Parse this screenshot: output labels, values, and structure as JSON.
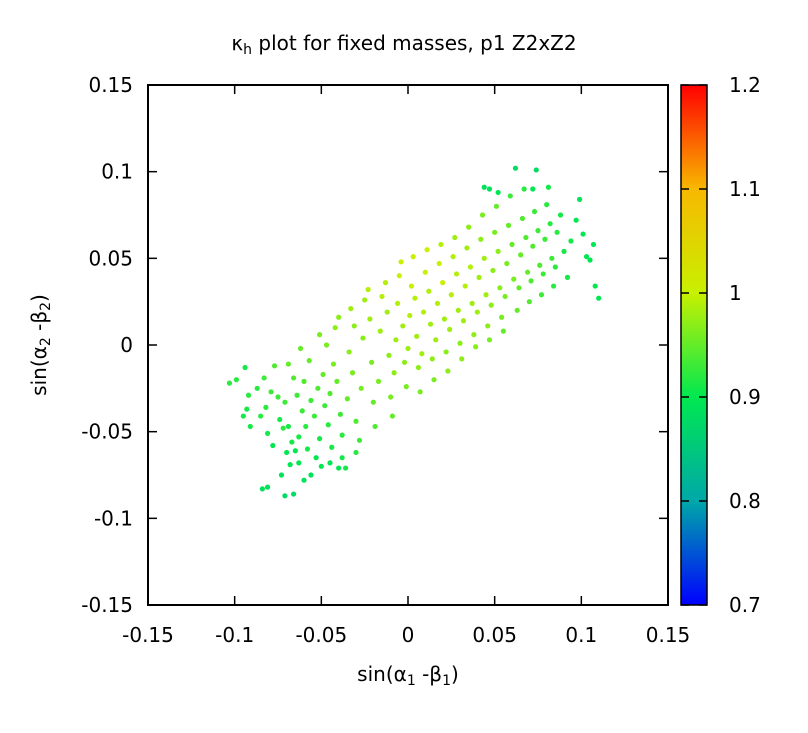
{
  "chart_data": {
    "type": "scatter",
    "title": {
      "main": "κ",
      "sub": "h",
      "rest": " plot for fixed masses, p1 Z2xZ2"
    },
    "xlabel": {
      "pre": "sin(α",
      "sub1": "1",
      "mid": " -β",
      "sub2": "1",
      "post": ")"
    },
    "ylabel": {
      "pre": "sin(α",
      "sub1": "2",
      "mid": " -β",
      "sub2": "2",
      "post": ")"
    },
    "xlim": [
      -0.15,
      0.15
    ],
    "ylim": [
      -0.15,
      0.15
    ],
    "xticks": [
      -0.15,
      -0.1,
      -0.05,
      0,
      0.05,
      0.1,
      0.15
    ],
    "xticklabels": [
      "-0.15",
      "-0.1",
      "-0.05",
      "0",
      "0.05",
      "0.1",
      "0.15"
    ],
    "yticks": [
      -0.15,
      -0.1,
      -0.05,
      0,
      0.05,
      0.1,
      0.15
    ],
    "yticklabels": [
      "-0.15",
      "-0.1",
      "-0.05",
      "0",
      "0.05",
      "0.1",
      "0.15"
    ],
    "colorbar": {
      "range": [
        0.7,
        1.2
      ],
      "ticks": [
        0.7,
        0.8,
        0.9,
        1,
        1.1,
        1.2
      ],
      "ticklabels": [
        "0.7",
        "0.8",
        "0.9",
        "1",
        "1.1",
        "1.2"
      ]
    },
    "grid": false,
    "points": [
      [
        -0.103,
        -0.022,
        0.92
      ],
      [
        -0.099,
        -0.02,
        0.92
      ],
      [
        -0.094,
        -0.013,
        0.91
      ],
      [
        -0.095,
        -0.041,
        0.91
      ],
      [
        -0.092,
        -0.029,
        0.92
      ],
      [
        -0.093,
        -0.037,
        0.91
      ],
      [
        -0.091,
        -0.047,
        0.91
      ],
      [
        -0.087,
        -0.025,
        0.92
      ],
      [
        -0.082,
        -0.036,
        0.92
      ],
      [
        -0.083,
        -0.019,
        0.93
      ],
      [
        -0.085,
        -0.041,
        0.92
      ],
      [
        -0.081,
        -0.051,
        0.91
      ],
      [
        -0.084,
        -0.083,
        0.89
      ],
      [
        -0.081,
        -0.082,
        0.89
      ],
      [
        -0.071,
        -0.087,
        0.88
      ],
      [
        -0.066,
        -0.086,
        0.88
      ],
      [
        -0.078,
        -0.058,
        0.9
      ],
      [
        -0.074,
        -0.043,
        0.91
      ],
      [
        -0.075,
        -0.03,
        0.93
      ],
      [
        -0.072,
        -0.048,
        0.92
      ],
      [
        -0.077,
        -0.012,
        0.94
      ],
      [
        -0.079,
        -0.027,
        0.93
      ],
      [
        -0.073,
        -0.075,
        0.89
      ],
      [
        -0.068,
        -0.069,
        0.9
      ],
      [
        -0.071,
        -0.033,
        0.93
      ],
      [
        -0.069,
        -0.047,
        0.91
      ],
      [
        -0.065,
        -0.061,
        0.9
      ],
      [
        -0.063,
        -0.068,
        0.9
      ],
      [
        -0.066,
        -0.019,
        0.94
      ],
      [
        -0.069,
        -0.011,
        0.95
      ],
      [
        -0.064,
        -0.029,
        0.93
      ],
      [
        -0.061,
        -0.038,
        0.93
      ],
      [
        -0.063,
        -0.053,
        0.91
      ],
      [
        -0.058,
        -0.06,
        0.91
      ],
      [
        -0.059,
        -0.047,
        0.92
      ],
      [
        -0.06,
        -0.021,
        0.94
      ],
      [
        -0.062,
        -0.002,
        0.95
      ],
      [
        -0.057,
        -0.009,
        0.95
      ],
      [
        -0.056,
        -0.032,
        0.93
      ],
      [
        -0.054,
        -0.041,
        0.93
      ],
      [
        -0.053,
        -0.065,
        0.9
      ],
      [
        -0.05,
        -0.07,
        0.9
      ],
      [
        -0.051,
        -0.054,
        0.91
      ],
      [
        -0.049,
        -0.017,
        0.95
      ],
      [
        -0.052,
        -0.025,
        0.94
      ],
      [
        -0.051,
        0.006,
        0.96
      ],
      [
        -0.047,
        0.0,
        0.96
      ],
      [
        -0.048,
        -0.035,
        0.93
      ],
      [
        -0.046,
        -0.046,
        0.92
      ],
      [
        -0.044,
        -0.059,
        0.91
      ],
      [
        -0.045,
        -0.028,
        0.94
      ],
      [
        -0.043,
        -0.011,
        0.96
      ],
      [
        -0.042,
        0.01,
        0.97
      ],
      [
        -0.04,
        0.016,
        0.97
      ],
      [
        -0.041,
        -0.021,
        0.95
      ],
      [
        -0.039,
        -0.04,
        0.93
      ],
      [
        -0.038,
        -0.052,
        0.92
      ],
      [
        -0.036,
        -0.071,
        0.91
      ],
      [
        -0.035,
        -0.031,
        0.95
      ],
      [
        -0.034,
        -0.004,
        0.97
      ],
      [
        -0.033,
        0.021,
        0.98
      ],
      [
        -0.031,
        0.011,
        0.97
      ],
      [
        -0.032,
        -0.016,
        0.96
      ],
      [
        -0.03,
        -0.044,
        0.94
      ],
      [
        -0.028,
        -0.055,
        0.93
      ],
      [
        -0.027,
        -0.025,
        0.96
      ],
      [
        -0.026,
        0.004,
        0.97
      ],
      [
        -0.025,
        0.026,
        0.98
      ],
      [
        -0.023,
        0.032,
        0.99
      ],
      [
        -0.022,
        0.015,
        0.98
      ],
      [
        -0.021,
        -0.01,
        0.96
      ],
      [
        -0.02,
        -0.033,
        0.95
      ],
      [
        -0.019,
        -0.047,
        0.94
      ],
      [
        -0.017,
        -0.021,
        0.96
      ],
      [
        -0.016,
        0.008,
        0.98
      ],
      [
        -0.015,
        0.028,
        0.99
      ],
      [
        -0.013,
        0.036,
        0.99
      ],
      [
        -0.012,
        0.019,
        0.98
      ],
      [
        -0.011,
        -0.006,
        0.97
      ],
      [
        -0.01,
        -0.03,
        0.96
      ],
      [
        -0.009,
        -0.041,
        0.95
      ],
      [
        -0.008,
        -0.016,
        0.97
      ],
      [
        -0.007,
        0.003,
        0.98
      ],
      [
        -0.006,
        0.024,
        0.99
      ],
      [
        -0.005,
        0.04,
        1.0
      ],
      [
        -0.004,
        0.048,
        1.0
      ],
      [
        -0.003,
        0.011,
        0.98
      ],
      [
        -0.002,
        -0.01,
        0.97
      ],
      [
        -0.001,
        -0.024,
        0.96
      ],
      [
        0.0,
        -0.002,
        0.98
      ],
      [
        0.001,
        0.017,
        0.99
      ],
      [
        0.002,
        0.034,
        1.0
      ],
      [
        0.003,
        0.051,
        1.0
      ],
      [
        0.004,
        0.027,
        0.99
      ],
      [
        0.005,
        0.005,
        0.98
      ],
      [
        0.006,
        -0.013,
        0.97
      ],
      [
        0.007,
        -0.027,
        0.96
      ],
      [
        0.008,
        -0.005,
        0.98
      ],
      [
        0.009,
        0.019,
        0.99
      ],
      [
        0.01,
        0.042,
        1.0
      ],
      [
        0.011,
        0.055,
        1.0
      ],
      [
        0.012,
        0.031,
        0.99
      ],
      [
        0.013,
        0.012,
        0.98
      ],
      [
        0.014,
        -0.008,
        0.97
      ],
      [
        0.015,
        -0.02,
        0.96
      ],
      [
        0.016,
        0.003,
        0.98
      ],
      [
        0.017,
        0.024,
        0.99
      ],
      [
        0.018,
        0.047,
        1.0
      ],
      [
        0.019,
        0.058,
        0.99
      ],
      [
        0.02,
        0.036,
        1.0
      ],
      [
        0.021,
        0.015,
        0.98
      ],
      [
        0.022,
        -0.004,
        0.97
      ],
      [
        0.023,
        -0.015,
        0.97
      ],
      [
        0.024,
        0.009,
        0.98
      ],
      [
        0.025,
        0.029,
        0.99
      ],
      [
        0.026,
        0.051,
        0.99
      ],
      [
        0.027,
        0.062,
        0.98
      ],
      [
        0.028,
        0.041,
        0.99
      ],
      [
        0.029,
        0.02,
        0.98
      ],
      [
        0.03,
        0.001,
        0.97
      ],
      [
        0.031,
        -0.008,
        0.97
      ],
      [
        0.032,
        0.014,
        0.98
      ],
      [
        0.033,
        0.034,
        0.99
      ],
      [
        0.034,
        0.056,
        0.98
      ],
      [
        0.035,
        0.068,
        0.97
      ],
      [
        0.036,
        0.045,
        0.99
      ],
      [
        0.037,
        0.024,
        0.98
      ],
      [
        0.038,
        0.006,
        0.97
      ],
      [
        0.039,
        -0.001,
        0.97
      ],
      [
        0.04,
        0.019,
        0.98
      ],
      [
        0.041,
        0.039,
        0.98
      ],
      [
        0.042,
        0.061,
        0.97
      ],
      [
        0.043,
        0.075,
        0.96
      ],
      [
        0.044,
        0.05,
        0.98
      ],
      [
        0.045,
        0.029,
        0.98
      ],
      [
        0.046,
        0.011,
        0.97
      ],
      [
        0.047,
        0.003,
        0.96
      ],
      [
        0.048,
        0.023,
        0.97
      ],
      [
        0.049,
        0.043,
        0.97
      ],
      [
        0.05,
        0.065,
        0.96
      ],
      [
        0.051,
        0.08,
        0.95
      ],
      [
        0.052,
        0.054,
        0.97
      ],
      [
        0.053,
        0.033,
        0.97
      ],
      [
        0.054,
        0.016,
        0.96
      ],
      [
        0.055,
        0.008,
        0.95
      ],
      [
        0.056,
        0.028,
        0.96
      ],
      [
        0.057,
        0.047,
        0.96
      ],
      [
        0.058,
        0.069,
        0.95
      ],
      [
        0.059,
        0.086,
        0.93
      ],
      [
        0.06,
        0.058,
        0.95
      ],
      [
        0.061,
        0.038,
        0.96
      ],
      [
        0.062,
        0.102,
        0.88
      ],
      [
        0.063,
        0.02,
        0.95
      ],
      [
        0.064,
        0.033,
        0.95
      ],
      [
        0.065,
        0.052,
        0.95
      ],
      [
        0.066,
        0.073,
        0.94
      ],
      [
        0.067,
        0.09,
        0.92
      ],
      [
        0.068,
        0.062,
        0.94
      ],
      [
        0.069,
        0.042,
        0.95
      ],
      [
        0.07,
        0.025,
        0.94
      ],
      [
        0.071,
        0.037,
        0.94
      ],
      [
        0.072,
        0.057,
        0.94
      ],
      [
        0.073,
        0.077,
        0.93
      ],
      [
        0.074,
        0.101,
        0.88
      ],
      [
        0.075,
        0.066,
        0.93
      ],
      [
        0.076,
        0.046,
        0.94
      ],
      [
        0.077,
        0.029,
        0.93
      ],
      [
        0.078,
        0.041,
        0.93
      ],
      [
        0.079,
        0.061,
        0.93
      ],
      [
        0.08,
        0.081,
        0.92
      ],
      [
        0.081,
        0.091,
        0.91
      ],
      [
        0.082,
        0.07,
        0.92
      ],
      [
        0.083,
        0.05,
        0.93
      ],
      [
        0.084,
        0.034,
        0.92
      ],
      [
        0.085,
        0.045,
        0.92
      ],
      [
        0.086,
        0.065,
        0.92
      ],
      [
        0.088,
        0.075,
        0.91
      ],
      [
        0.09,
        0.054,
        0.91
      ],
      [
        0.092,
        0.039,
        0.91
      ],
      [
        0.094,
        0.06,
        0.91
      ],
      [
        0.097,
        0.072,
        0.9
      ],
      [
        0.099,
        0.084,
        0.89
      ],
      [
        0.101,
        0.064,
        0.9
      ],
      [
        0.103,
        0.051,
        0.9
      ],
      [
        0.105,
        0.049,
        0.9
      ],
      [
        0.107,
        0.058,
        0.9
      ],
      [
        0.108,
        0.034,
        0.9
      ],
      [
        0.11,
        0.027,
        0.9
      ],
      [
        0.044,
        0.091,
        0.89
      ],
      [
        0.047,
        0.09,
        0.89
      ],
      [
        0.052,
        0.088,
        0.9
      ],
      [
        0.072,
        0.09,
        0.9
      ],
      [
        -0.06,
        -0.078,
        0.89
      ],
      [
        -0.056,
        -0.075,
        0.89
      ],
      [
        -0.045,
        -0.068,
        0.9
      ],
      [
        -0.04,
        -0.071,
        0.9
      ],
      [
        -0.07,
        -0.062,
        0.9
      ],
      [
        -0.067,
        -0.056,
        0.91
      ],
      [
        -0.038,
        -0.065,
        0.91
      ],
      [
        -0.03,
        -0.062,
        0.92
      ]
    ]
  }
}
